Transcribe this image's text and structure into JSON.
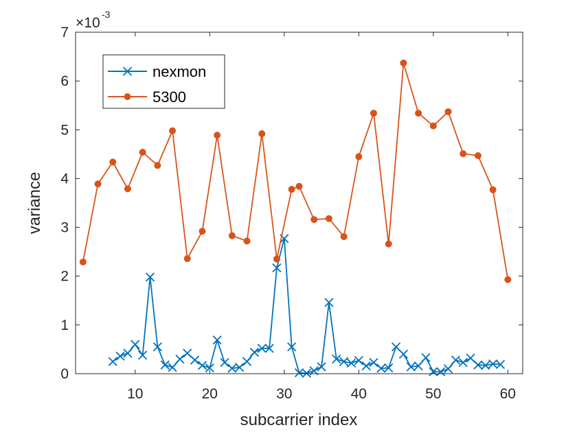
{
  "chart_data": {
    "type": "line",
    "xlabel": "subcarrier index",
    "ylabel": "variance",
    "xlim": [
      2,
      62
    ],
    "ylim": [
      0,
      7
    ],
    "xticks": [
      10,
      20,
      30,
      40,
      50,
      60
    ],
    "yticks": [
      0,
      1,
      2,
      3,
      4,
      5,
      6,
      7
    ],
    "y_exponent_base": "×10",
    "y_exponent_power": "-3",
    "legend_position": "top-left",
    "series": [
      {
        "name": "nexmon",
        "color": "#0072bd",
        "marker": "x",
        "x": [
          7,
          8,
          9,
          10,
          11,
          12,
          13,
          14,
          15,
          16,
          17,
          18,
          19,
          20,
          21,
          22,
          23,
          24,
          25,
          26,
          27,
          28,
          29,
          30,
          31,
          32,
          33,
          34,
          35,
          36,
          37,
          38,
          39,
          40,
          41,
          42,
          43,
          44,
          45,
          46,
          47,
          48,
          49,
          50,
          51,
          52,
          53,
          54,
          55,
          56,
          57,
          58,
          59
        ],
        "values": [
          0.25,
          0.36,
          0.42,
          0.6,
          0.38,
          1.98,
          0.55,
          0.18,
          0.13,
          0.3,
          0.42,
          0.28,
          0.17,
          0.12,
          0.69,
          0.23,
          0.11,
          0.13,
          0.25,
          0.44,
          0.52,
          0.52,
          2.17,
          2.77,
          0.55,
          0.02,
          0.01,
          0.06,
          0.14,
          1.46,
          0.3,
          0.25,
          0.22,
          0.27,
          0.16,
          0.23,
          0.11,
          0.12,
          0.55,
          0.4,
          0.14,
          0.16,
          0.33,
          0.04,
          0.04,
          0.1,
          0.28,
          0.23,
          0.32,
          0.18,
          0.17,
          0.2,
          0.19
        ]
      },
      {
        "name": "5300",
        "color": "#d95319",
        "marker": "o",
        "x": [
          3,
          5,
          7,
          9,
          11,
          13,
          15,
          17,
          19,
          21,
          23,
          25,
          27,
          29,
          31,
          32,
          34,
          36,
          38,
          40,
          42,
          44,
          46,
          48,
          50,
          52,
          54,
          56,
          58,
          60
        ],
        "values": [
          2.29,
          3.89,
          4.34,
          3.79,
          4.54,
          4.27,
          4.98,
          2.36,
          2.92,
          4.89,
          2.83,
          2.72,
          4.92,
          2.35,
          3.78,
          3.84,
          3.16,
          3.18,
          2.81,
          4.45,
          5.34,
          2.66,
          6.37,
          5.34,
          5.08,
          5.37,
          4.51,
          4.47,
          3.77,
          1.93
        ]
      }
    ]
  }
}
